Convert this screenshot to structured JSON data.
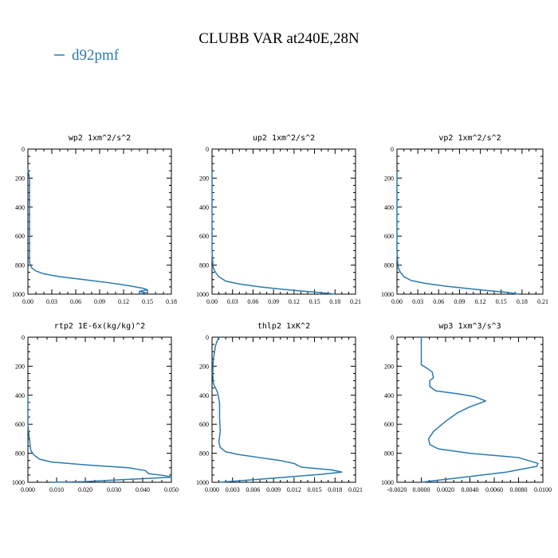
{
  "figure": {
    "title": "CLUBB VAR at240E,28N",
    "legend": {
      "label": "d92pmf",
      "color": "#2a7ab0",
      "placement": "top-left"
    }
  },
  "chart_data": [
    {
      "type": "line",
      "title": "wp2  1xm^2/s^2",
      "xlim": [
        0,
        0.18
      ],
      "ylim": [
        1000,
        0
      ],
      "xticks": [
        "0.00",
        "0.03",
        "0.06",
        "0.09",
        "0.12",
        "0.15",
        "0.18"
      ],
      "yticks": [
        "0",
        "200",
        "400",
        "600",
        "800",
        "1000"
      ],
      "series": [
        {
          "color": "#2a7ab0",
          "points": [
            [
              0.0,
              140
            ],
            [
              0.002,
              200
            ],
            [
              0.002,
              300
            ],
            [
              0.002,
              400
            ],
            [
              0.002,
              500
            ],
            [
              0.002,
              600
            ],
            [
              0.002,
              700
            ],
            [
              0.002,
              780
            ],
            [
              0.003,
              800
            ],
            [
              0.005,
              820
            ],
            [
              0.01,
              840
            ],
            [
              0.02,
              860
            ],
            [
              0.04,
              880
            ],
            [
              0.07,
              900
            ],
            [
              0.1,
              920
            ],
            [
              0.125,
              940
            ],
            [
              0.145,
              960
            ],
            [
              0.15,
              970
            ],
            [
              0.14,
              980
            ],
            [
              0.148,
              990
            ],
            [
              0.14,
              1000
            ]
          ]
        }
      ]
    },
    {
      "type": "line",
      "title": "up2  1xm^2/s^2",
      "xlim": [
        0,
        0.21
      ],
      "ylim": [
        1000,
        0
      ],
      "xticks": [
        "0.00",
        "0.03",
        "0.06",
        "0.09",
        "0.12",
        "0.15",
        "0.18",
        "0.21"
      ],
      "yticks": [
        "0",
        "200",
        "400",
        "600",
        "800",
        "1000"
      ],
      "series": [
        {
          "color": "#2a7ab0",
          "points": [
            [
              0.0,
              150
            ],
            [
              0.0,
              300
            ],
            [
              0.0,
              500
            ],
            [
              0.0,
              700
            ],
            [
              0.001,
              780
            ],
            [
              0.002,
              820
            ],
            [
              0.005,
              850
            ],
            [
              0.01,
              880
            ],
            [
              0.02,
              910
            ],
            [
              0.04,
              930
            ],
            [
              0.07,
              950
            ],
            [
              0.1,
              965
            ],
            [
              0.13,
              978
            ],
            [
              0.16,
              990
            ],
            [
              0.18,
              1000
            ]
          ]
        }
      ]
    },
    {
      "type": "line",
      "title": "vp2  1xm^2/s^2",
      "xlim": [
        0,
        0.21
      ],
      "ylim": [
        1000,
        0
      ],
      "xticks": [
        "0.00",
        "0.03",
        "0.06",
        "0.09",
        "0.12",
        "0.15",
        "0.18",
        "0.21"
      ],
      "yticks": [
        "0",
        "200",
        "400",
        "600",
        "800",
        "1000"
      ],
      "series": [
        {
          "color": "#2a7ab0",
          "points": [
            [
              0.0,
              150
            ],
            [
              0.0,
              300
            ],
            [
              0.0,
              500
            ],
            [
              0.0,
              700
            ],
            [
              0.001,
              780
            ],
            [
              0.002,
              820
            ],
            [
              0.005,
              850
            ],
            [
              0.01,
              880
            ],
            [
              0.02,
              905
            ],
            [
              0.04,
              925
            ],
            [
              0.07,
              945
            ],
            [
              0.1,
              960
            ],
            [
              0.13,
              975
            ],
            [
              0.16,
              988
            ],
            [
              0.175,
              1000
            ]
          ]
        }
      ]
    },
    {
      "type": "line",
      "title": "rtp2  1E-6x(kg/kg)^2",
      "xlim": [
        0,
        0.05
      ],
      "ylim": [
        1000,
        0
      ],
      "xticks": [
        "0.000",
        "0.010",
        "0.020",
        "0.030",
        "0.040",
        "0.050"
      ],
      "yticks": [
        "0",
        "200",
        "400",
        "600",
        "800",
        "1000"
      ],
      "series": [
        {
          "color": "#2a7ab0",
          "points": [
            [
              0.0,
              400
            ],
            [
              0.0,
              500
            ],
            [
              0.0,
              600
            ],
            [
              0.0005,
              700
            ],
            [
              0.001,
              780
            ],
            [
              0.002,
              810
            ],
            [
              0.004,
              840
            ],
            [
              0.008,
              860
            ],
            [
              0.02,
              880
            ],
            [
              0.035,
              900
            ],
            [
              0.041,
              920
            ],
            [
              0.042,
              940
            ],
            [
              0.048,
              955
            ],
            [
              0.05,
              965
            ],
            [
              0.04,
              975
            ],
            [
              0.03,
              985
            ],
            [
              0.02,
              995
            ],
            [
              0.008,
              1000
            ]
          ]
        }
      ]
    },
    {
      "type": "line",
      "title": "thlp2  1xK^2",
      "xlim": [
        0,
        0.021
      ],
      "ylim": [
        1000,
        0
      ],
      "xticks": [
        "0.000",
        "0.003",
        "0.006",
        "0.009",
        "0.012",
        "0.015",
        "0.018",
        "0.021"
      ],
      "yticks": [
        "0",
        "200",
        "400",
        "600",
        "800",
        "1000"
      ],
      "series": [
        {
          "color": "#2a7ab0",
          "points": [
            [
              0.001,
              0
            ],
            [
              0.0008,
              20
            ],
            [
              0.0005,
              60
            ],
            [
              0.0002,
              150
            ],
            [
              0.0001,
              250
            ],
            [
              0.0002,
              320
            ],
            [
              0.0008,
              380
            ],
            [
              0.0011,
              450
            ],
            [
              0.0011,
              550
            ],
            [
              0.0012,
              650
            ],
            [
              0.001,
              720
            ],
            [
              0.0012,
              760
            ],
            [
              0.002,
              790
            ],
            [
              0.004,
              810
            ],
            [
              0.007,
              830
            ],
            [
              0.01,
              850
            ],
            [
              0.012,
              870
            ],
            [
              0.013,
              895
            ],
            [
              0.0175,
              915
            ],
            [
              0.019,
              930
            ],
            [
              0.016,
              945
            ],
            [
              0.012,
              960
            ],
            [
              0.008,
              975
            ],
            [
              0.004,
              990
            ],
            [
              0.001,
              1000
            ]
          ]
        }
      ]
    },
    {
      "type": "line",
      "title": "wp3  1xm^3/s^3",
      "xlim": [
        -0.002,
        0.01
      ],
      "ylim": [
        1000,
        0
      ],
      "xticks": [
        "-0.0020",
        "0.0000",
        "0.0020",
        "0.0040",
        "0.0060",
        "0.0080",
        "0.0100"
      ],
      "yticks": [
        "0",
        "200",
        "400",
        "600",
        "800",
        "1000"
      ],
      "series": [
        {
          "color": "#2a7ab0",
          "points": [
            [
              0.0,
              0
            ],
            [
              0.0,
              100
            ],
            [
              0.0,
              190
            ],
            [
              0.0004,
              210
            ],
            [
              0.0009,
              240
            ],
            [
              0.001,
              280
            ],
            [
              0.0007,
              300
            ],
            [
              0.0007,
              340
            ],
            [
              0.0012,
              370
            ],
            [
              0.003,
              390
            ],
            [
              0.0044,
              410
            ],
            [
              0.0053,
              440
            ],
            [
              0.004,
              480
            ],
            [
              0.003,
              520
            ],
            [
              0.002,
              580
            ],
            [
              0.001,
              650
            ],
            [
              0.0006,
              700
            ],
            [
              0.0007,
              740
            ],
            [
              0.0014,
              770
            ],
            [
              0.004,
              800
            ],
            [
              0.008,
              830
            ],
            [
              0.0096,
              870
            ],
            [
              0.0095,
              890
            ],
            [
              0.007,
              930
            ],
            [
              0.004,
              960
            ],
            [
              0.001,
              990
            ],
            [
              0.0,
              1000
            ]
          ]
        }
      ]
    }
  ]
}
